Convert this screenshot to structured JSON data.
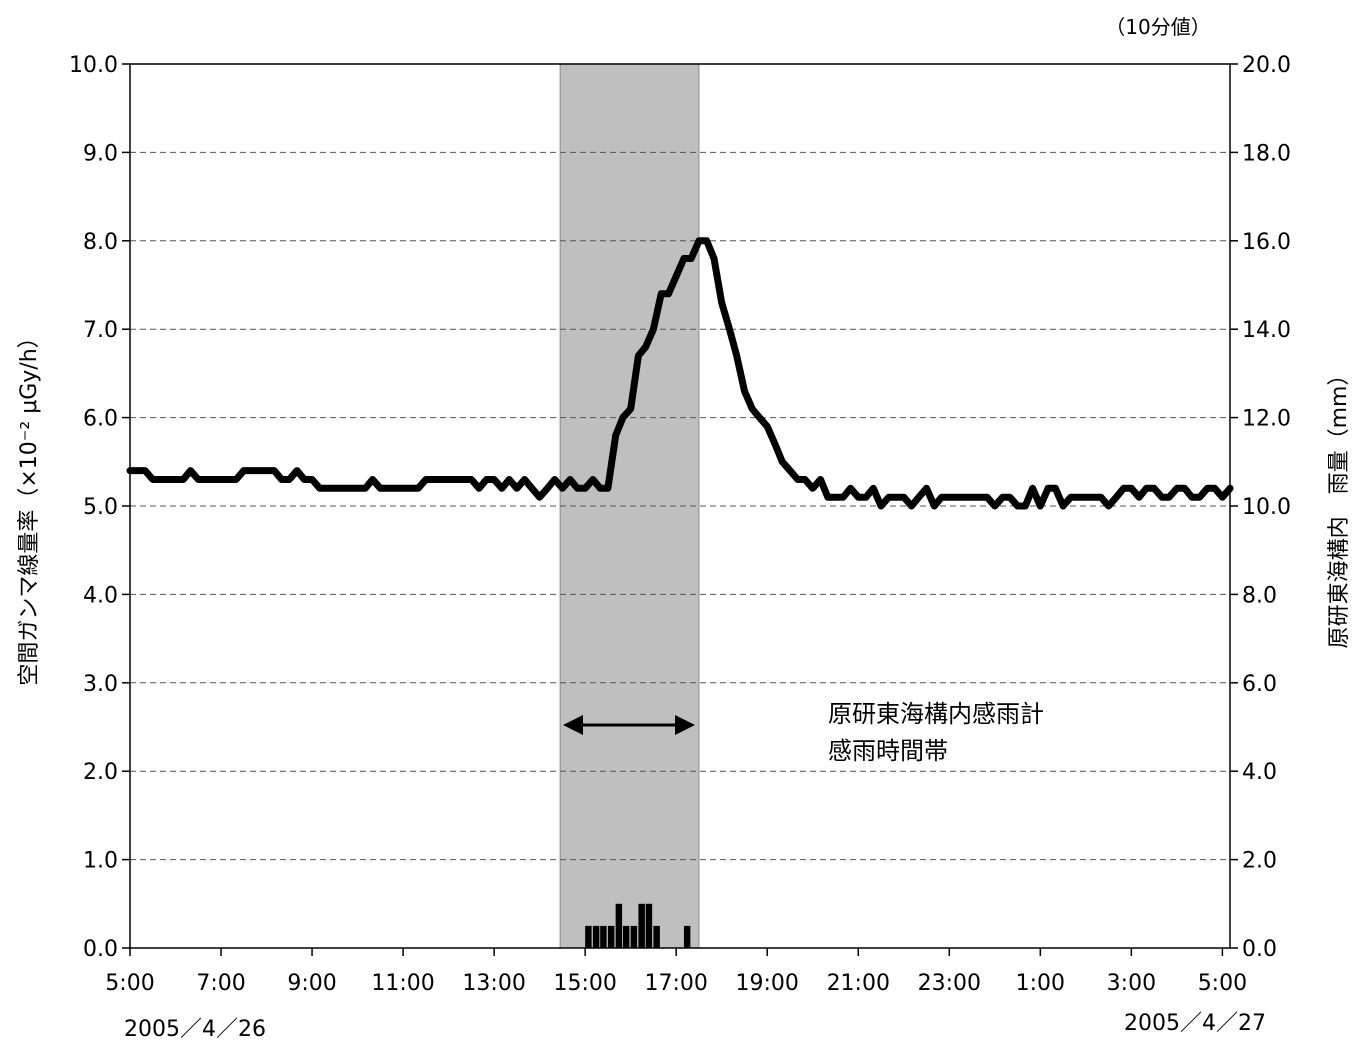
{
  "chart_data": {
    "type": "line",
    "unit_note": "（10分値）",
    "ylabel_left": "空間ガンマ線量率（×10⁻² μGy/h）",
    "ylabel_right": "原研東海構内　雨量（mm）",
    "ylim_left": [
      0,
      10
    ],
    "ylim_right": [
      0,
      20
    ],
    "yticks_left": [
      "0.0",
      "1.0",
      "2.0",
      "3.0",
      "4.0",
      "5.0",
      "6.0",
      "7.0",
      "8.0",
      "9.0",
      "10.0"
    ],
    "yticks_right": [
      "0.0",
      "2.0",
      "4.0",
      "6.0",
      "8.0",
      "10.0",
      "12.0",
      "14.0",
      "16.0",
      "18.0",
      "20.0"
    ],
    "xlim_hours": [
      5,
      29.167
    ],
    "xticks": [
      {
        "h": 5,
        "label": "5:00"
      },
      {
        "h": 7,
        "label": "7:00"
      },
      {
        "h": 9,
        "label": "9:00"
      },
      {
        "h": 11,
        "label": "11:00"
      },
      {
        "h": 13,
        "label": "13:00"
      },
      {
        "h": 15,
        "label": "15:00"
      },
      {
        "h": 17,
        "label": "17:00"
      },
      {
        "h": 19,
        "label": "19:00"
      },
      {
        "h": 21,
        "label": "21:00"
      },
      {
        "h": 23,
        "label": "23:00"
      },
      {
        "h": 25,
        "label": "1:00"
      },
      {
        "h": 27,
        "label": "3:00"
      },
      {
        "h": 29,
        "label": "5:00"
      }
    ],
    "date_start": "2005／4／26",
    "date_end": "2005／4／27",
    "grid": "horizontal dashed",
    "shaded_period": {
      "start_h": 14.45,
      "end_h": 17.5
    },
    "annotation": [
      "原研東海構内感雨計",
      "感雨時間帯"
    ],
    "series": [
      {
        "axis": "left",
        "style": "line",
        "color": "#000000",
        "points": [
          [
            5.0,
            5.4
          ],
          [
            5.33,
            5.4
          ],
          [
            5.5,
            5.3
          ],
          [
            5.67,
            5.3
          ],
          [
            5.83,
            5.3
          ],
          [
            6.0,
            5.3
          ],
          [
            6.17,
            5.3
          ],
          [
            6.33,
            5.4
          ],
          [
            6.5,
            5.3
          ],
          [
            6.67,
            5.3
          ],
          [
            6.83,
            5.3
          ],
          [
            7.0,
            5.3
          ],
          [
            7.17,
            5.3
          ],
          [
            7.33,
            5.3
          ],
          [
            7.5,
            5.4
          ],
          [
            7.67,
            5.4
          ],
          [
            7.83,
            5.4
          ],
          [
            8.0,
            5.4
          ],
          [
            8.17,
            5.4
          ],
          [
            8.33,
            5.3
          ],
          [
            8.5,
            5.3
          ],
          [
            8.67,
            5.4
          ],
          [
            8.83,
            5.3
          ],
          [
            9.0,
            5.3
          ],
          [
            9.17,
            5.2
          ],
          [
            9.33,
            5.2
          ],
          [
            9.5,
            5.2
          ],
          [
            9.67,
            5.2
          ],
          [
            9.83,
            5.2
          ],
          [
            10.0,
            5.2
          ],
          [
            10.17,
            5.2
          ],
          [
            10.33,
            5.3
          ],
          [
            10.5,
            5.2
          ],
          [
            10.67,
            5.2
          ],
          [
            10.83,
            5.2
          ],
          [
            11.0,
            5.2
          ],
          [
            11.17,
            5.2
          ],
          [
            11.33,
            5.2
          ],
          [
            11.5,
            5.3
          ],
          [
            11.67,
            5.3
          ],
          [
            11.83,
            5.3
          ],
          [
            12.0,
            5.3
          ],
          [
            12.17,
            5.3
          ],
          [
            12.33,
            5.3
          ],
          [
            12.5,
            5.3
          ],
          [
            12.67,
            5.2
          ],
          [
            12.83,
            5.3
          ],
          [
            13.0,
            5.3
          ],
          [
            13.17,
            5.2
          ],
          [
            13.33,
            5.3
          ],
          [
            13.5,
            5.2
          ],
          [
            13.67,
            5.3
          ],
          [
            13.83,
            5.2
          ],
          [
            14.0,
            5.1
          ],
          [
            14.17,
            5.2
          ],
          [
            14.33,
            5.3
          ],
          [
            14.5,
            5.2
          ],
          [
            14.67,
            5.3
          ],
          [
            14.83,
            5.2
          ],
          [
            15.0,
            5.2
          ],
          [
            15.17,
            5.3
          ],
          [
            15.33,
            5.2
          ],
          [
            15.5,
            5.2
          ],
          [
            15.67,
            5.8
          ],
          [
            15.83,
            6.0
          ],
          [
            16.0,
            6.1
          ],
          [
            16.17,
            6.7
          ],
          [
            16.33,
            6.8
          ],
          [
            16.5,
            7.0
          ],
          [
            16.67,
            7.4
          ],
          [
            16.83,
            7.4
          ],
          [
            17.0,
            7.6
          ],
          [
            17.17,
            7.8
          ],
          [
            17.33,
            7.8
          ],
          [
            17.5,
            8.0
          ],
          [
            17.67,
            8.0
          ],
          [
            17.83,
            7.8
          ],
          [
            18.0,
            7.3
          ],
          [
            18.17,
            7.0
          ],
          [
            18.33,
            6.7
          ],
          [
            18.5,
            6.3
          ],
          [
            18.67,
            6.1
          ],
          [
            18.83,
            6.0
          ],
          [
            19.0,
            5.9
          ],
          [
            19.17,
            5.7
          ],
          [
            19.33,
            5.5
          ],
          [
            19.5,
            5.4
          ],
          [
            19.67,
            5.3
          ],
          [
            19.83,
            5.3
          ],
          [
            20.0,
            5.2
          ],
          [
            20.17,
            5.3
          ],
          [
            20.33,
            5.1
          ],
          [
            20.5,
            5.1
          ],
          [
            20.67,
            5.1
          ],
          [
            20.83,
            5.2
          ],
          [
            21.0,
            5.1
          ],
          [
            21.17,
            5.1
          ],
          [
            21.33,
            5.2
          ],
          [
            21.5,
            5.0
          ],
          [
            21.67,
            5.1
          ],
          [
            21.83,
            5.1
          ],
          [
            22.0,
            5.1
          ],
          [
            22.17,
            5.0
          ],
          [
            22.33,
            5.1
          ],
          [
            22.5,
            5.2
          ],
          [
            22.67,
            5.0
          ],
          [
            22.83,
            5.1
          ],
          [
            23.0,
            5.1
          ],
          [
            23.17,
            5.1
          ],
          [
            23.33,
            5.1
          ],
          [
            23.5,
            5.1
          ],
          [
            23.67,
            5.1
          ],
          [
            23.83,
            5.1
          ],
          [
            24.0,
            5.0
          ],
          [
            24.17,
            5.1
          ],
          [
            24.33,
            5.1
          ],
          [
            24.5,
            5.0
          ],
          [
            24.67,
            5.0
          ],
          [
            24.83,
            5.2
          ],
          [
            25.0,
            5.0
          ],
          [
            25.17,
            5.2
          ],
          [
            25.33,
            5.2
          ],
          [
            25.5,
            5.0
          ],
          [
            25.67,
            5.1
          ],
          [
            25.83,
            5.1
          ],
          [
            26.0,
            5.1
          ],
          [
            26.17,
            5.1
          ],
          [
            26.33,
            5.1
          ],
          [
            26.5,
            5.0
          ],
          [
            26.67,
            5.1
          ],
          [
            26.83,
            5.2
          ],
          [
            27.0,
            5.2
          ],
          [
            27.17,
            5.1
          ],
          [
            27.33,
            5.2
          ],
          [
            27.5,
            5.2
          ],
          [
            27.67,
            5.1
          ],
          [
            27.83,
            5.1
          ],
          [
            28.0,
            5.2
          ],
          [
            28.17,
            5.2
          ],
          [
            28.33,
            5.1
          ],
          [
            28.5,
            5.1
          ],
          [
            28.67,
            5.2
          ],
          [
            28.83,
            5.2
          ],
          [
            29.0,
            5.1
          ],
          [
            29.17,
            5.2
          ],
          [
            29.33,
            5.1
          ],
          [
            29.5,
            5.2
          ],
          [
            29.67,
            5.2
          ],
          [
            29.83,
            5.1
          ],
          [
            30.0,
            5.3
          ],
          [
            30.17,
            5.2
          ],
          [
            30.33,
            5.2
          ]
        ]
      },
      {
        "axis": "right",
        "style": "bar",
        "color": "#000000",
        "points": [
          [
            15.0,
            0.5
          ],
          [
            15.17,
            0.5
          ],
          [
            15.33,
            0.5
          ],
          [
            15.5,
            0.5
          ],
          [
            15.67,
            1.0
          ],
          [
            15.83,
            0.5
          ],
          [
            16.0,
            0.5
          ],
          [
            16.17,
            1.0
          ],
          [
            16.33,
            1.0
          ],
          [
            16.5,
            0.5
          ],
          [
            17.17,
            0.5
          ]
        ]
      }
    ]
  }
}
